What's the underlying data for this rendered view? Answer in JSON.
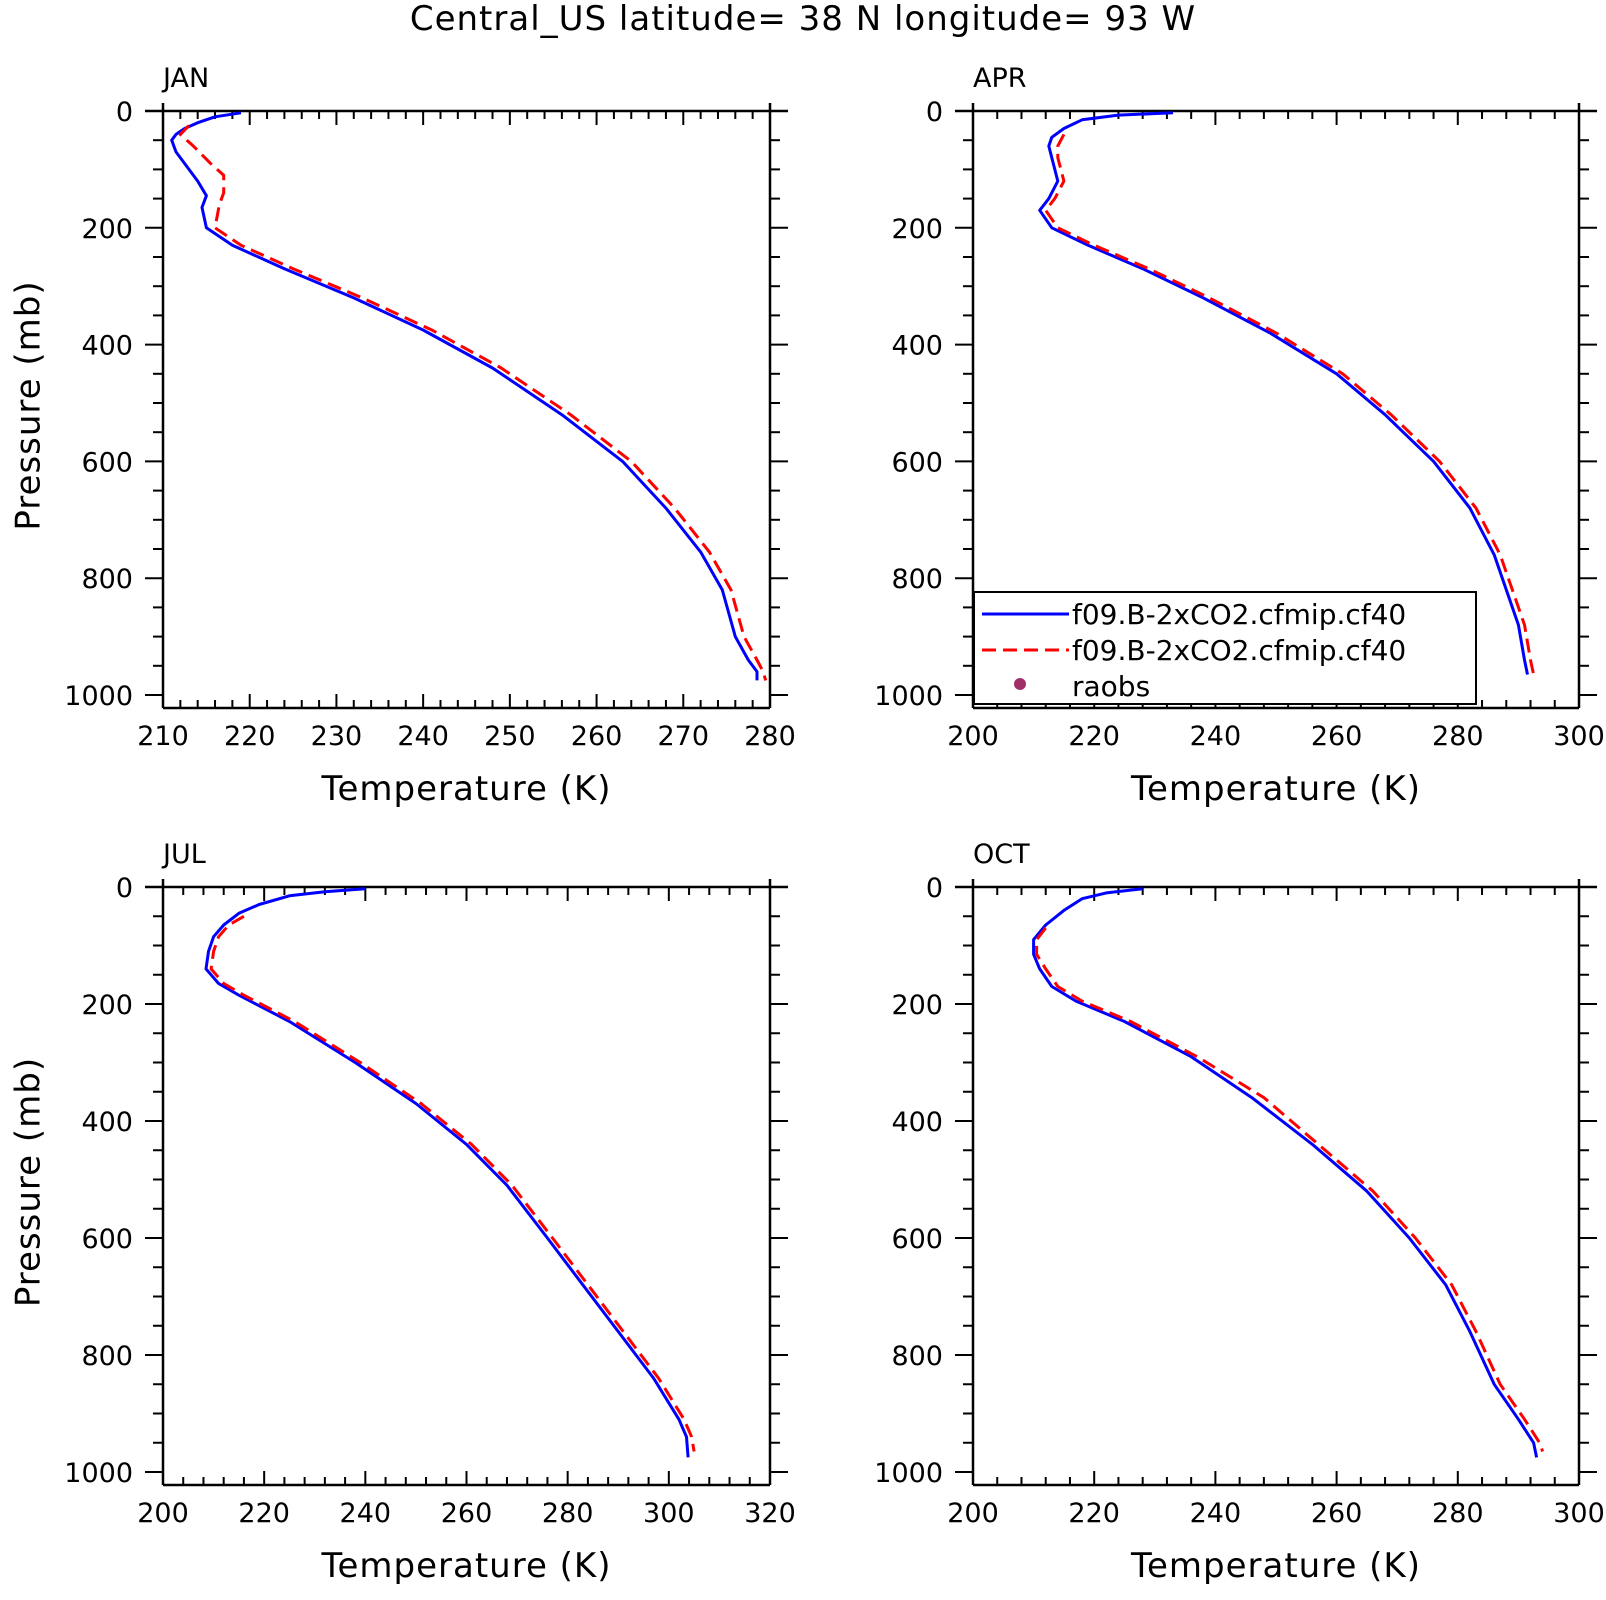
{
  "figure": {
    "title": "Central_US  latitude= 38 N longitude= 93 W"
  },
  "legend": {
    "entries": [
      {
        "label": "f09.B-2xCO2.cfmip.cf40",
        "color": "#0000ff",
        "style": "solid"
      },
      {
        "label": "f09.B-2xCO2.cfmip.cf40",
        "color": "#ff0000",
        "style": "dashed"
      },
      {
        "label": "raobs",
        "color": "#a0306a",
        "style": "dot"
      }
    ]
  },
  "chart_data": [
    {
      "type": "line",
      "title": "JAN",
      "xlabel": "Temperature (K)",
      "ylabel": "Pressure (mb)",
      "xlim": [
        210,
        280
      ],
      "ylim": [
        1000,
        0
      ],
      "xticks": [
        210,
        220,
        230,
        240,
        250,
        260,
        270,
        280
      ],
      "yticks": [
        0,
        200,
        400,
        600,
        800,
        1000
      ],
      "grid": false,
      "series": [
        {
          "color": "#0000ff",
          "style": "solid",
          "points": [
            [
              219,
              3
            ],
            [
              216,
              10
            ],
            [
              214,
              20
            ],
            [
              212.5,
              30
            ],
            [
              211.5,
              40
            ],
            [
              211,
              50
            ],
            [
              211.5,
              70
            ],
            [
              212.5,
              90
            ],
            [
              214,
              120
            ],
            [
              215,
              145
            ],
            [
              214.5,
              165
            ],
            [
              215,
              200
            ],
            [
              218,
              230
            ],
            [
              224,
              270
            ],
            [
              232,
              320
            ],
            [
              240,
              375
            ],
            [
              248,
              440
            ],
            [
              256,
              520
            ],
            [
              263,
              600
            ],
            [
              268,
              680
            ],
            [
              272,
              755
            ],
            [
              274.5,
              820
            ],
            [
              276,
              900
            ],
            [
              277.5,
              940
            ],
            [
              278.5,
              960
            ],
            [
              278.5,
              975
            ]
          ]
        },
        {
          "color": "#ff0000",
          "style": "dashed",
          "points": [
            [
              213,
              25
            ],
            [
              212,
              40
            ],
            [
              213.5,
              60
            ],
            [
              215.5,
              90
            ],
            [
              217,
              110
            ],
            [
              217,
              140
            ],
            [
              216.5,
              160
            ],
            [
              216,
              200
            ],
            [
              219,
              230
            ],
            [
              225,
              270
            ],
            [
              233,
              320
            ],
            [
              241,
              375
            ],
            [
              249,
              440
            ],
            [
              257,
              520
            ],
            [
              264,
              600
            ],
            [
              269,
              680
            ],
            [
              273,
              755
            ],
            [
              275.5,
              820
            ],
            [
              277,
              900
            ],
            [
              278.5,
              940
            ],
            [
              279.2,
              960
            ],
            [
              279.5,
              975
            ]
          ]
        }
      ]
    },
    {
      "type": "line",
      "title": "APR",
      "xlabel": "Temperature (K)",
      "ylabel": "",
      "xlim": [
        200,
        300
      ],
      "ylim": [
        1000,
        0
      ],
      "xticks": [
        200,
        220,
        240,
        260,
        280,
        300
      ],
      "yticks": [
        0,
        200,
        400,
        600,
        800,
        1000
      ],
      "grid": false,
      "series": [
        {
          "color": "#0000ff",
          "style": "solid",
          "points": [
            [
              233,
              3
            ],
            [
              224,
              7
            ],
            [
              218,
              15
            ],
            [
              215,
              30
            ],
            [
              213,
              45
            ],
            [
              212.5,
              60
            ],
            [
              213,
              80
            ],
            [
              213.5,
              100
            ],
            [
              214,
              120
            ],
            [
              212.5,
              150
            ],
            [
              211,
              170
            ],
            [
              213,
              200
            ],
            [
              219,
              230
            ],
            [
              228,
              270
            ],
            [
              238,
              320
            ],
            [
              249,
              380
            ],
            [
              260,
              450
            ],
            [
              268,
              520
            ],
            [
              276,
              600
            ],
            [
              282,
              680
            ],
            [
              286,
              760
            ],
            [
              290,
              880
            ],
            [
              291,
              940
            ],
            [
              291.5,
              965
            ]
          ]
        },
        {
          "color": "#ff0000",
          "style": "dashed",
          "points": [
            [
              215,
              40
            ],
            [
              214,
              60
            ],
            [
              214,
              80
            ],
            [
              214.5,
              100
            ],
            [
              215,
              120
            ],
            [
              213.5,
              150
            ],
            [
              212,
              170
            ],
            [
              214,
              200
            ],
            [
              220,
              230
            ],
            [
              229,
              270
            ],
            [
              239,
              320
            ],
            [
              250,
              380
            ],
            [
              261,
              450
            ],
            [
              269,
              520
            ],
            [
              277,
              600
            ],
            [
              283,
              680
            ],
            [
              287,
              760
            ],
            [
              291,
              880
            ],
            [
              292,
              940
            ],
            [
              292.5,
              965
            ]
          ]
        }
      ]
    },
    {
      "type": "line",
      "title": "JUL",
      "xlabel": "Temperature (K)",
      "ylabel": "Pressure (mb)",
      "xlim": [
        200,
        320
      ],
      "ylim": [
        1000,
        0
      ],
      "xticks": [
        200,
        220,
        240,
        260,
        280,
        300,
        320
      ],
      "yticks": [
        0,
        200,
        400,
        600,
        800,
        1000
      ],
      "grid": false,
      "series": [
        {
          "color": "#0000ff",
          "style": "solid",
          "points": [
            [
              240,
              3
            ],
            [
              232,
              8
            ],
            [
              225,
              15
            ],
            [
              219,
              30
            ],
            [
              215,
              45
            ],
            [
              212,
              65
            ],
            [
              210,
              85
            ],
            [
              209,
              110
            ],
            [
              208.5,
              140
            ],
            [
              211,
              165
            ],
            [
              215,
              185
            ],
            [
              225,
              230
            ],
            [
              238,
              300
            ],
            [
              250,
              370
            ],
            [
              260,
              440
            ],
            [
              268,
              510
            ],
            [
              276,
              600
            ],
            [
              283,
              680
            ],
            [
              290,
              760
            ],
            [
              297,
              840
            ],
            [
              302,
              910
            ],
            [
              303.5,
              940
            ],
            [
              303.8,
              975
            ]
          ]
        },
        {
          "color": "#ff0000",
          "style": "dashed",
          "points": [
            [
              216,
              50
            ],
            [
              213,
              65
            ],
            [
              211,
              85
            ],
            [
              210,
              110
            ],
            [
              209.5,
              140
            ],
            [
              212,
              165
            ],
            [
              216,
              185
            ],
            [
              226,
              230
            ],
            [
              239,
              300
            ],
            [
              251,
              370
            ],
            [
              261,
              440
            ],
            [
              269,
              510
            ],
            [
              277,
              600
            ],
            [
              284,
              680
            ],
            [
              291,
              760
            ],
            [
              298,
              840
            ],
            [
              303,
              910
            ],
            [
              304.5,
              940
            ],
            [
              305,
              965
            ]
          ]
        }
      ]
    },
    {
      "type": "line",
      "title": "OCT",
      "xlabel": "Temperature (K)",
      "ylabel": "",
      "xlim": [
        200,
        300
      ],
      "ylim": [
        1000,
        0
      ],
      "xticks": [
        200,
        220,
        240,
        260,
        280,
        300
      ],
      "yticks": [
        0,
        200,
        400,
        600,
        800,
        1000
      ],
      "grid": false,
      "series": [
        {
          "color": "#0000ff",
          "style": "solid",
          "points": [
            [
              228,
              3
            ],
            [
              222,
              10
            ],
            [
              218,
              20
            ],
            [
              215,
              40
            ],
            [
              212,
              65
            ],
            [
              210,
              90
            ],
            [
              210,
              115
            ],
            [
              211,
              140
            ],
            [
              213,
              170
            ],
            [
              217,
              195
            ],
            [
              225,
              230
            ],
            [
              236,
              290
            ],
            [
              246,
              360
            ],
            [
              256,
              440
            ],
            [
              265,
              520
            ],
            [
              272,
              600
            ],
            [
              278,
              680
            ],
            [
              282,
              760
            ],
            [
              286,
              850
            ],
            [
              290,
              910
            ],
            [
              292.5,
              950
            ],
            [
              293,
              975
            ]
          ]
        },
        {
          "color": "#ff0000",
          "style": "dashed",
          "points": [
            [
              212,
              70
            ],
            [
              210.5,
              90
            ],
            [
              210.5,
              115
            ],
            [
              212,
              140
            ],
            [
              214,
              170
            ],
            [
              218,
              195
            ],
            [
              226,
              230
            ],
            [
              237,
              290
            ],
            [
              248,
              360
            ],
            [
              257,
              440
            ],
            [
              266,
              520
            ],
            [
              273,
              600
            ],
            [
              279,
              680
            ],
            [
              283,
              760
            ],
            [
              287,
              850
            ],
            [
              291,
              910
            ],
            [
              293.5,
              950
            ],
            [
              294,
              965
            ]
          ]
        }
      ]
    }
  ]
}
